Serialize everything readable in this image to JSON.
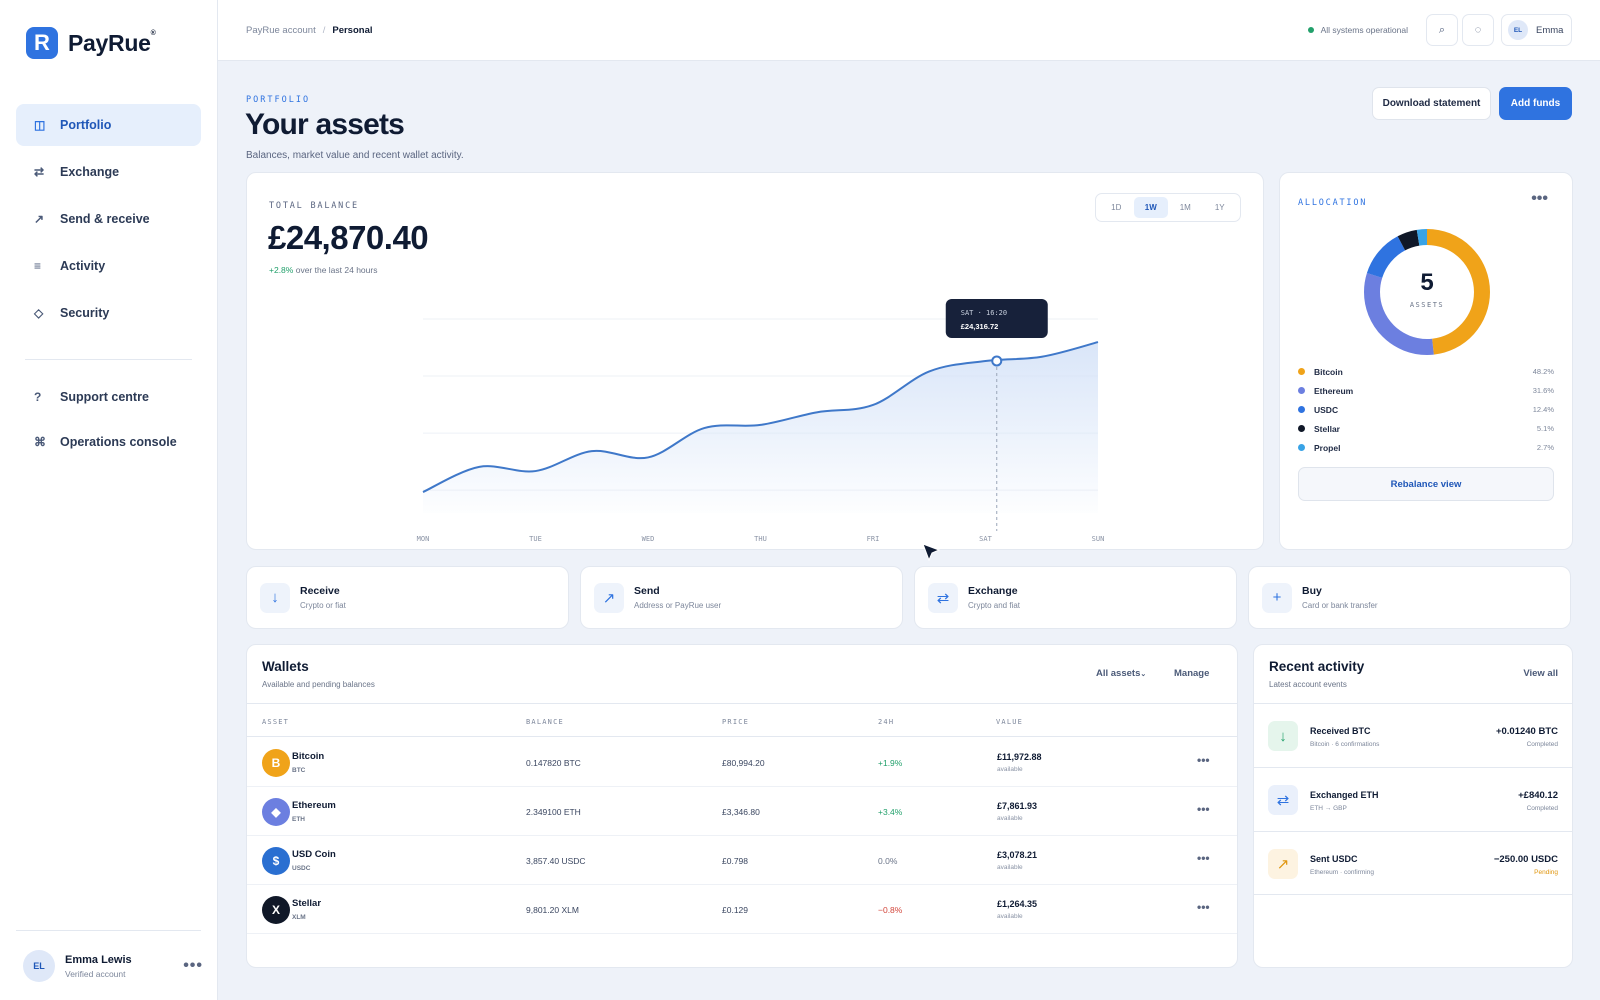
{
  "brand": {
    "name": "PayRue",
    "mark": "R",
    "mark_sup": "®"
  },
  "sidebar": {
    "items": [
      {
        "label": "Portfolio",
        "icon": "◫",
        "active": true
      },
      {
        "label": "Exchange",
        "icon": "⇄"
      },
      {
        "label": "Send & receive",
        "icon": "↗"
      },
      {
        "label": "Activity",
        "icon": "≡"
      },
      {
        "label": "Security",
        "icon": "◇"
      }
    ],
    "secondary": [
      {
        "label": "Support centre",
        "icon": "?"
      },
      {
        "label": "Operations console",
        "icon": "⌘"
      }
    ],
    "user": {
      "initials": "EL",
      "name": "Emma Lewis",
      "status": "Verified account",
      "more": "•••"
    }
  },
  "topbar": {
    "breadcrumb": {
      "root": "PayRue account",
      "separator": "/",
      "current": "Personal"
    },
    "status": "All systems operational",
    "search_icon": "⌕",
    "theme_icon": "◌",
    "user": {
      "initials": "EL",
      "name": "Emma"
    }
  },
  "header": {
    "eyebrow": "PORTFOLIO",
    "title": "Your assets",
    "subtitle": "Balances, market value and recent wallet activity.",
    "download_label": "Download statement",
    "add_funds_label": "Add funds"
  },
  "balance": {
    "label": "TOTAL BALANCE",
    "value": "£24,870.40",
    "change": "+2.8%",
    "change_text": "over the last 24 hours",
    "ranges": [
      "1D",
      "1W",
      "1M",
      "1Y"
    ],
    "active_range": "1W",
    "tooltip": {
      "time": "SAT · 16:20",
      "value": "£24,316.72"
    }
  },
  "chart_data": {
    "type": "area",
    "title": "",
    "xlabel": "",
    "ylabel": "",
    "x": [
      "MON",
      "TUE",
      "WED",
      "THU",
      "FRI",
      "SAT",
      "SUN"
    ],
    "series": [
      {
        "points": [
          [
            0,
            0.1
          ],
          [
            0.5,
            0.34
          ],
          [
            1,
            0.3
          ],
          [
            1.5,
            0.49
          ],
          [
            2,
            0.43
          ],
          [
            2.5,
            0.71
          ],
          [
            3,
            0.74
          ],
          [
            3.5,
            0.86
          ],
          [
            4,
            0.93
          ],
          [
            4.5,
            1.25
          ],
          [
            5,
            1.35
          ],
          [
            5.5,
            1.39
          ],
          [
            6,
            1.53
          ]
        ]
      }
    ],
    "highlight": {
      "x": 5.1,
      "y": 1.35,
      "label": "£24,316.72"
    },
    "ylim": [
      -0.1,
      1.75
    ],
    "grid": true,
    "color": "#3f78c9",
    "fill": "#d7e4f8"
  },
  "allocation": {
    "label": "ALLOCATION",
    "more": "•••",
    "count": "5",
    "count_label": "ASSETS",
    "assets": [
      {
        "name": "Bitcoin",
        "pct": "48.2%",
        "value": 48.2,
        "color": "#f0a319"
      },
      {
        "name": "Ethereum",
        "pct": "31.6%",
        "value": 31.6,
        "color": "#6c7fe0"
      },
      {
        "name": "USDC",
        "pct": "12.4%",
        "value": 12.4,
        "color": "#2f73e0"
      },
      {
        "name": "Stellar",
        "pct": "5.1%",
        "value": 5.1,
        "color": "#101828"
      },
      {
        "name": "Propel",
        "pct": "2.7%",
        "value": 2.7,
        "color": "#39a3e6"
      }
    ],
    "rebalance_label": "Rebalance view"
  },
  "quick_actions": [
    {
      "title": "Receive",
      "sub": "Crypto or fiat",
      "icon": "↓"
    },
    {
      "title": "Send",
      "sub": "Address or PayRue user",
      "icon": "↗"
    },
    {
      "title": "Exchange",
      "sub": "Crypto and fiat",
      "icon": "⇄"
    },
    {
      "title": "Buy",
      "sub": "Card or bank transfer",
      "icon": "+"
    }
  ],
  "wallets": {
    "title": "Wallets",
    "subtitle": "Available and pending balances",
    "filter_label": "All assets",
    "manage_label": "Manage",
    "columns": [
      "ASSET",
      "BALANCE",
      "PRICE",
      "24H",
      "VALUE"
    ],
    "rows": [
      {
        "name": "Bitcoin",
        "symbol": "BTC",
        "glyph": "B",
        "color": "#f0a319",
        "balance": "0.147820 BTC",
        "price": "£80,994.20",
        "change": "+1.9%",
        "trend": "pos",
        "value": "£11,972.88",
        "value_note": "available"
      },
      {
        "name": "Ethereum",
        "symbol": "ETH",
        "glyph": "◆",
        "color": "#6c7fe0",
        "balance": "2.349100 ETH",
        "price": "£3,346.80",
        "change": "+3.4%",
        "trend": "pos",
        "value": "£7,861.93",
        "value_note": "available"
      },
      {
        "name": "USD Coin",
        "symbol": "USDC",
        "glyph": "$",
        "color": "#2a6fd1",
        "balance": "3,857.40 USDC",
        "price": "£0.798",
        "change": "0.0%",
        "trend": "flat",
        "value": "£3,078.21",
        "value_note": "available"
      },
      {
        "name": "Stellar",
        "symbol": "XLM",
        "glyph": "X",
        "color": "#101828",
        "balance": "9,801.20 XLM",
        "price": "£0.129",
        "change": "−0.8%",
        "trend": "neg",
        "value": "£1,264.35",
        "value_note": "available"
      }
    ],
    "row_more": "•••"
  },
  "activity": {
    "title": "Recent activity",
    "subtitle": "Latest account events",
    "view_all_label": "View all",
    "items": [
      {
        "name": "Received BTC",
        "desc": "Bitcoin · 6 confirmations",
        "amount": "+0.01240 BTC",
        "status": "Completed",
        "icon": "↓",
        "tone": "green"
      },
      {
        "name": "Exchanged ETH",
        "desc": "ETH → GBP",
        "amount": "+£840.12",
        "status": "Completed",
        "icon": "⇄",
        "tone": "blue"
      },
      {
        "name": "Sent USDC",
        "desc": "Ethereum · confirming",
        "amount": "−250.00 USDC",
        "status": "Pending",
        "icon": "↗",
        "tone": "amber"
      }
    ]
  }
}
